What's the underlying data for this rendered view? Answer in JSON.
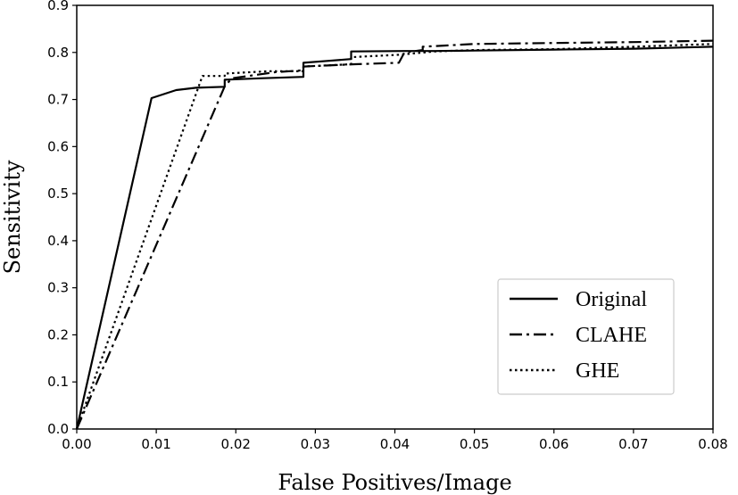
{
  "chart_data": {
    "type": "line",
    "title": "",
    "xlabel": "False Positives/Image",
    "ylabel": "Sensitivity",
    "xlim": [
      0.0,
      0.08
    ],
    "ylim": [
      0.0,
      0.9
    ],
    "xticks": [
      "0.00",
      "0.01",
      "0.02",
      "0.03",
      "0.04",
      "0.05",
      "0.06",
      "0.07",
      "0.08"
    ],
    "yticks": [
      "0.0",
      "0.1",
      "0.2",
      "0.3",
      "0.4",
      "0.5",
      "0.6",
      "0.7",
      "0.8",
      "0.9"
    ],
    "grid": false,
    "legend_position": "lower-right",
    "series": [
      {
        "name": "Original",
        "style": "solid",
        "color": "#000000",
        "points": [
          [
            0.0,
            0.0
          ],
          [
            0.0094,
            0.703
          ],
          [
            0.0125,
            0.72
          ],
          [
            0.015,
            0.725
          ],
          [
            0.0186,
            0.727
          ],
          [
            0.0186,
            0.742
          ],
          [
            0.023,
            0.745
          ],
          [
            0.0285,
            0.748
          ],
          [
            0.0285,
            0.778
          ],
          [
            0.0315,
            0.782
          ],
          [
            0.0345,
            0.786
          ],
          [
            0.0345,
            0.802
          ],
          [
            0.0412,
            0.803
          ],
          [
            0.045,
            0.803
          ],
          [
            0.05,
            0.804
          ],
          [
            0.06,
            0.806
          ],
          [
            0.07,
            0.808
          ],
          [
            0.08,
            0.812
          ]
        ]
      },
      {
        "name": "CLAHE",
        "style": "dashdot",
        "color": "#000000",
        "points": [
          [
            0.0,
            0.0
          ],
          [
            0.0186,
            0.728
          ],
          [
            0.0195,
            0.745
          ],
          [
            0.025,
            0.758
          ],
          [
            0.0285,
            0.762
          ],
          [
            0.0285,
            0.77
          ],
          [
            0.035,
            0.775
          ],
          [
            0.0405,
            0.778
          ],
          [
            0.0412,
            0.8
          ],
          [
            0.0435,
            0.805
          ],
          [
            0.0435,
            0.812
          ],
          [
            0.05,
            0.818
          ],
          [
            0.06,
            0.82
          ],
          [
            0.07,
            0.822
          ],
          [
            0.08,
            0.825
          ]
        ]
      },
      {
        "name": "GHE",
        "style": "dotted",
        "color": "#000000",
        "points": [
          [
            0.0,
            0.0
          ],
          [
            0.0158,
            0.75
          ],
          [
            0.0186,
            0.75
          ],
          [
            0.0186,
            0.755
          ],
          [
            0.024,
            0.76
          ],
          [
            0.0285,
            0.76
          ],
          [
            0.0285,
            0.77
          ],
          [
            0.0345,
            0.775
          ],
          [
            0.0345,
            0.79
          ],
          [
            0.0405,
            0.795
          ],
          [
            0.045,
            0.802
          ],
          [
            0.05,
            0.805
          ],
          [
            0.06,
            0.807
          ],
          [
            0.07,
            0.812
          ],
          [
            0.08,
            0.818
          ]
        ]
      }
    ]
  }
}
